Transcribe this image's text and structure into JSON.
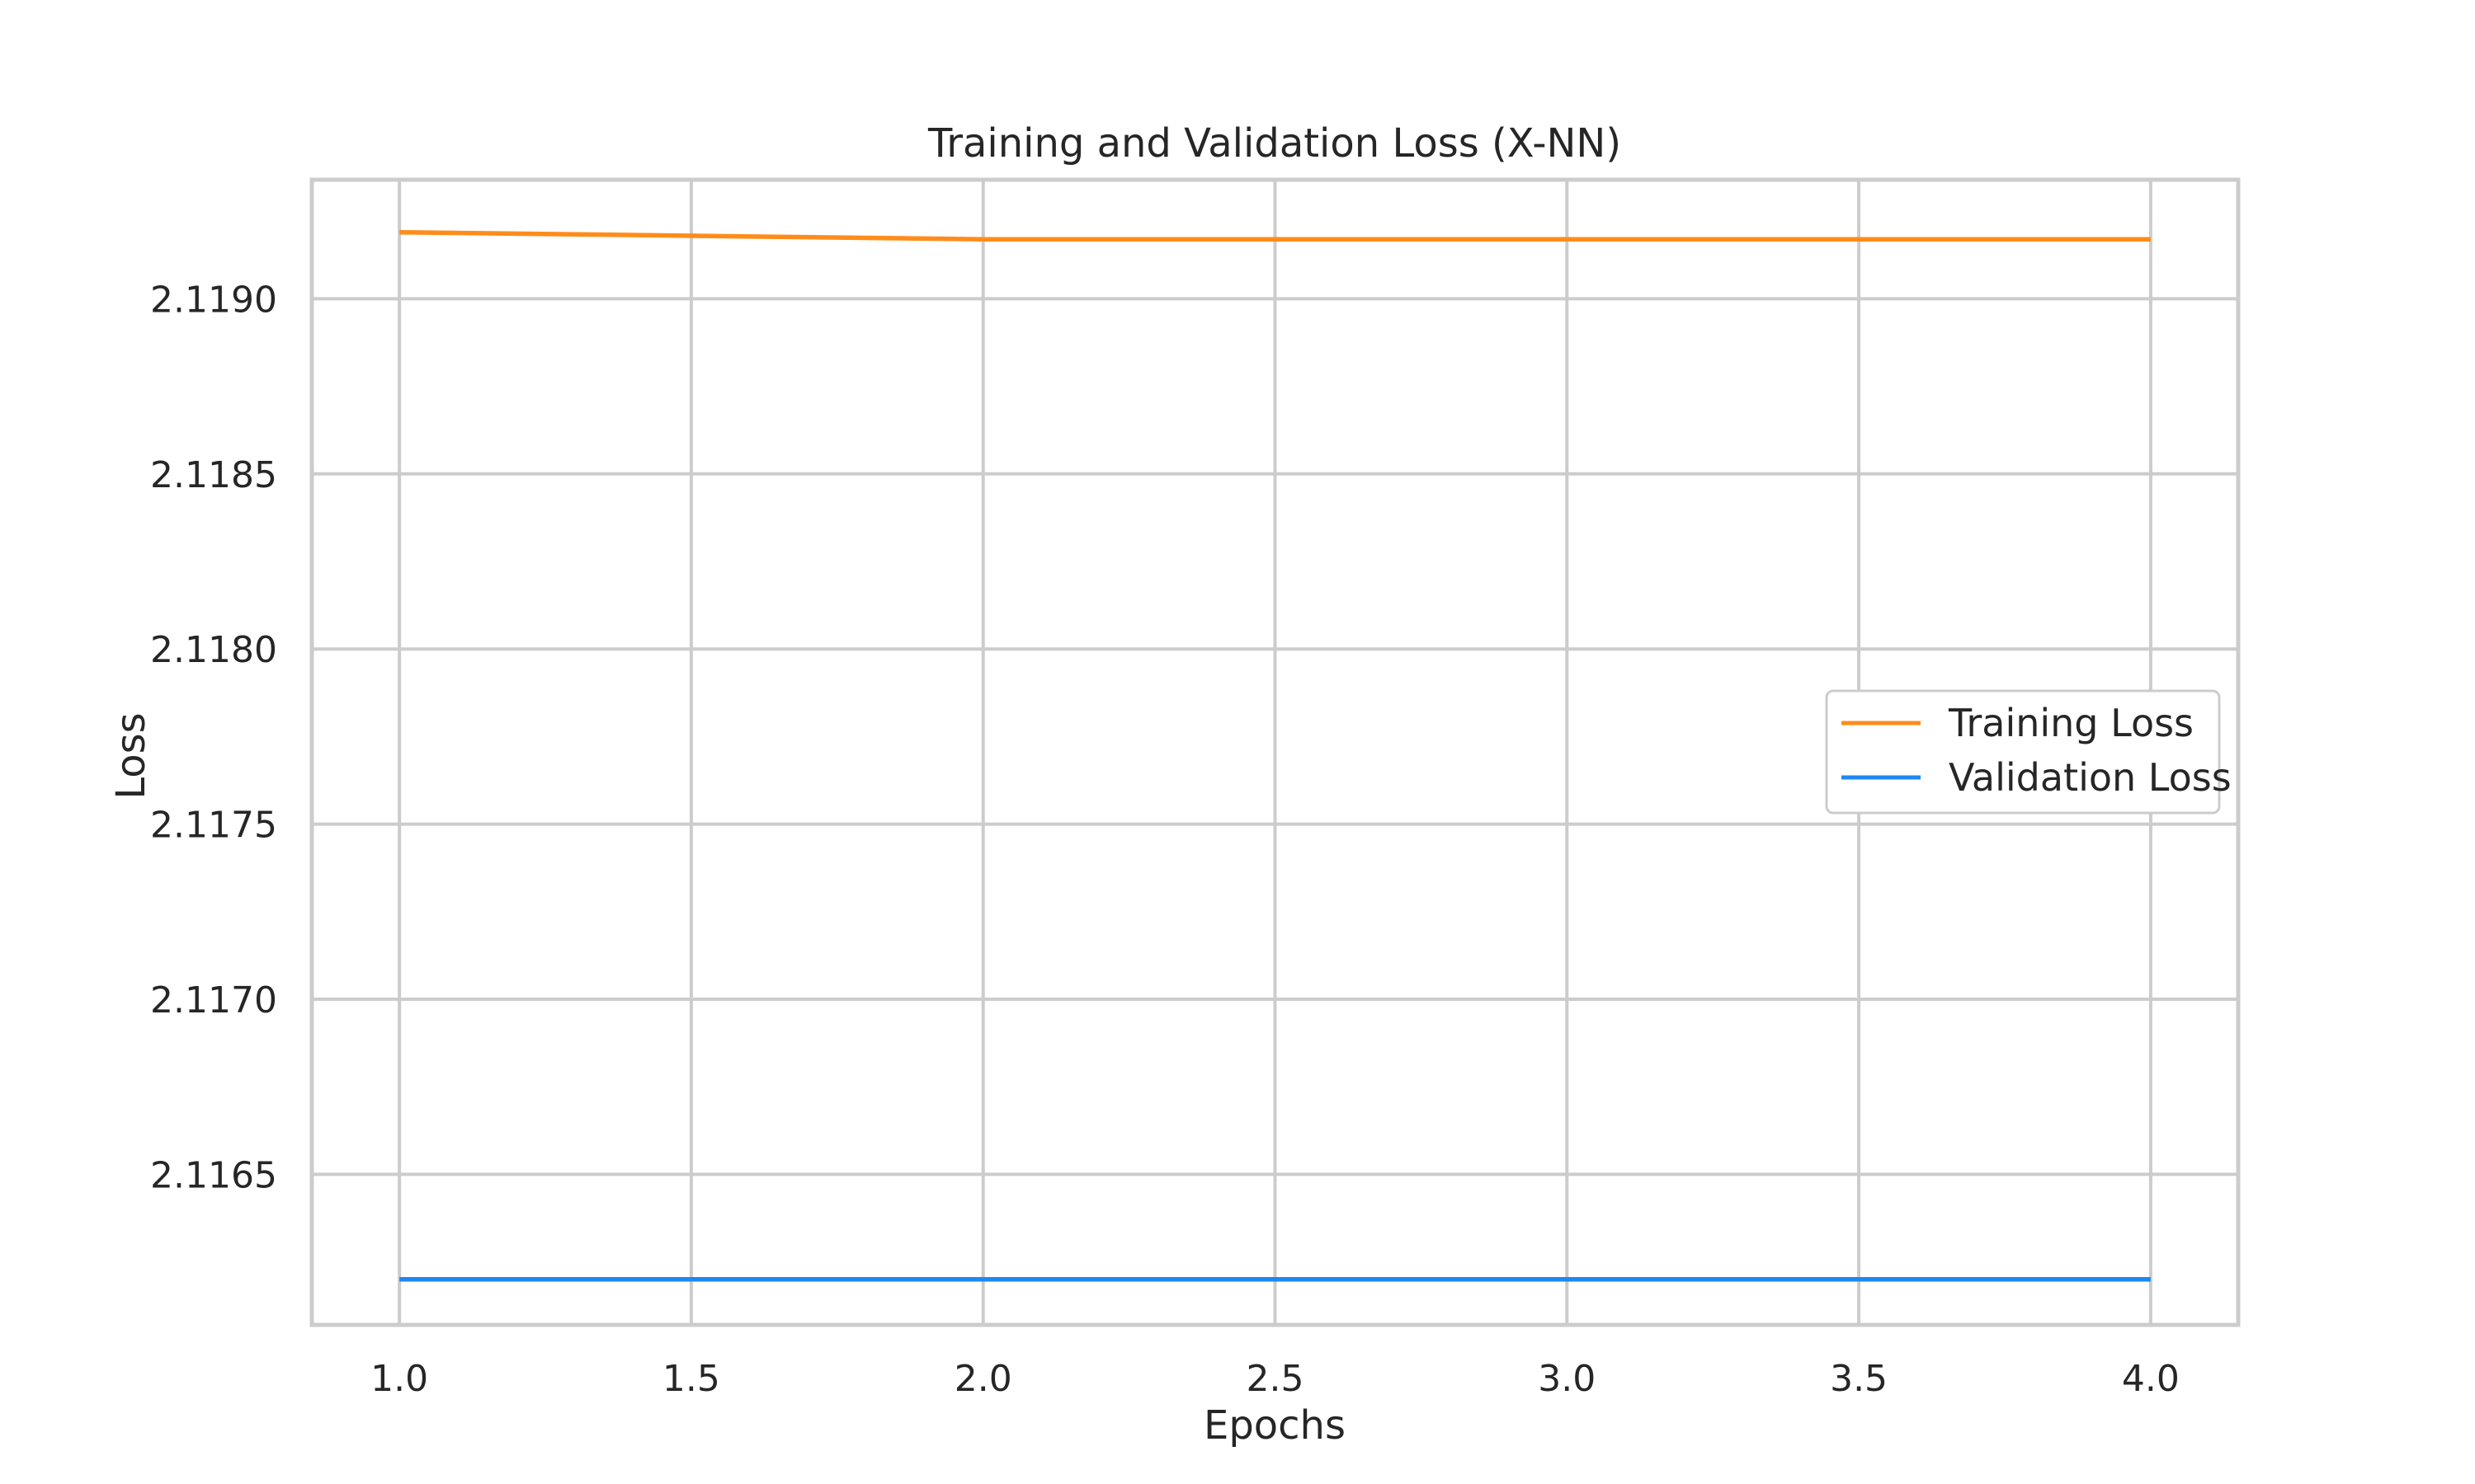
{
  "chart_data": {
    "type": "line",
    "title": "Training and Validation Loss (X-NN)",
    "xlabel": "Epochs",
    "ylabel": "Loss",
    "x": [
      1,
      2,
      3,
      4
    ],
    "xlim": [
      0.85,
      4.15
    ],
    "ylim": [
      2.11607,
      2.11934
    ],
    "xticks": [
      1.0,
      1.5,
      2.0,
      2.5,
      3.0,
      3.5,
      4.0
    ],
    "xtick_labels": [
      "1.0",
      "1.5",
      "2.0",
      "2.5",
      "3.0",
      "3.5",
      "4.0"
    ],
    "yticks": [
      2.1165,
      2.117,
      2.1175,
      2.118,
      2.1185,
      2.119
    ],
    "ytick_labels": [
      "2.1165",
      "2.1170",
      "2.1175",
      "2.1180",
      "2.1185",
      "2.1190"
    ],
    "grid": true,
    "legend_position": "center-right",
    "series": [
      {
        "name": "Training Loss",
        "color": "#ff8c1a",
        "values": [
          2.11919,
          2.11917,
          2.11917,
          2.11917
        ]
      },
      {
        "name": "Validation Loss",
        "color": "#1e88f0",
        "values": [
          2.1162,
          2.1162,
          2.1162,
          2.1162
        ]
      }
    ]
  }
}
